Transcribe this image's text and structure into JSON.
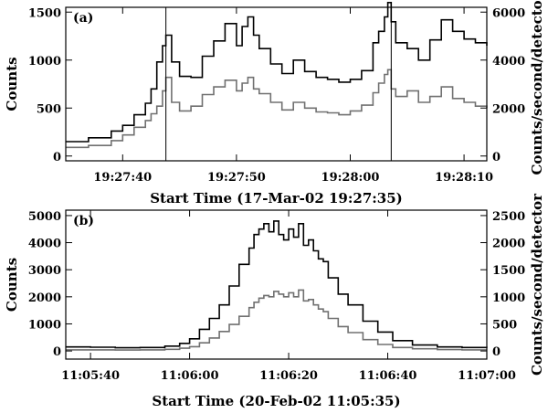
{
  "chart_data": [
    {
      "type": "line",
      "panel_label": "(a)",
      "xlabel": "Start Time (17-Mar-02 19:27:35)",
      "ylabel": "Counts",
      "ylabel_right": "Counts/second/detector",
      "xlim": [
        0,
        37
      ],
      "ylim": [
        -50,
        1550
      ],
      "ylim_right": [
        -200,
        6200
      ],
      "x_ticks": [
        {
          "value": 5,
          "label": "19:27:40"
        },
        {
          "value": 15,
          "label": "19:27:50"
        },
        {
          "value": 25,
          "label": "19:28:00"
        },
        {
          "value": 35,
          "label": "19:28:10"
        }
      ],
      "y_ticks": [
        0,
        500,
        1000,
        1500
      ],
      "y_ticks_right": [
        0,
        2000,
        4000,
        6000
      ],
      "vertical_markers": [
        8.8,
        28.6
      ],
      "series": [
        {
          "color": "#000000",
          "x": [
            0,
            2,
            4,
            5,
            6,
            7,
            7.5,
            8,
            8.5,
            8.8,
            9.3,
            10,
            11,
            12,
            13,
            14,
            15,
            15.5,
            16,
            16.5,
            17,
            18,
            19,
            20,
            21,
            22,
            23,
            24,
            25,
            26,
            27,
            27.5,
            28,
            28.3,
            28.6,
            29,
            30,
            31,
            32,
            33,
            34,
            35,
            36,
            37
          ],
          "values": [
            150,
            190,
            260,
            320,
            430,
            550,
            700,
            980,
            1150,
            1260,
            980,
            830,
            820,
            1040,
            1200,
            1380,
            1150,
            1350,
            1450,
            1260,
            1120,
            960,
            860,
            1000,
            880,
            820,
            800,
            770,
            800,
            890,
            1180,
            1300,
            1450,
            1600,
            1400,
            1180,
            1120,
            1000,
            1210,
            1420,
            1300,
            1220,
            1180,
            1150
          ]
        },
        {
          "color": "#707070",
          "x": [
            0,
            2,
            4,
            5,
            6,
            7,
            7.5,
            8,
            8.5,
            8.8,
            9.3,
            10,
            11,
            12,
            13,
            14,
            15,
            15.5,
            16,
            16.5,
            17,
            18,
            19,
            20,
            21,
            22,
            23,
            24,
            25,
            26,
            27,
            27.5,
            28,
            28.3,
            28.6,
            29,
            30,
            31,
            32,
            33,
            34,
            35,
            36,
            37
          ],
          "values": [
            90,
            110,
            160,
            220,
            300,
            370,
            440,
            520,
            680,
            820,
            560,
            470,
            520,
            640,
            720,
            790,
            680,
            760,
            820,
            700,
            650,
            560,
            480,
            560,
            500,
            460,
            450,
            430,
            470,
            530,
            660,
            760,
            850,
            900,
            700,
            620,
            680,
            560,
            620,
            720,
            600,
            560,
            520,
            500
          ]
        }
      ]
    },
    {
      "type": "line",
      "panel_label": "(b)",
      "xlabel": "Start Time (20-Feb-02 11:05:35)",
      "ylabel": "Counts",
      "ylabel_right": "Counts/second/detector",
      "xlim": [
        0,
        85
      ],
      "ylim": [
        -300,
        5200
      ],
      "ylim_right": [
        -150,
        2600
      ],
      "x_ticks": [
        {
          "value": 5,
          "label": "11:05:40"
        },
        {
          "value": 25,
          "label": "11:06:00"
        },
        {
          "value": 45,
          "label": "11:06:20"
        },
        {
          "value": 65,
          "label": "11:06:40"
        },
        {
          "value": 85,
          "label": "11:07:00"
        }
      ],
      "y_ticks": [
        0,
        1000,
        2000,
        3000,
        4000,
        5000
      ],
      "y_ticks_right": [
        0,
        500,
        1000,
        1500,
        2000,
        2500
      ],
      "series": [
        {
          "color": "#000000",
          "x": [
            0,
            5,
            10,
            15,
            20,
            23,
            25,
            27,
            29,
            31,
            33,
            35,
            37,
            38,
            39,
            40,
            41,
            42,
            43,
            44,
            45,
            46,
            47,
            48,
            49,
            50,
            51,
            52,
            53,
            55,
            57,
            60,
            63,
            66,
            70,
            75,
            80,
            85
          ],
          "values": [
            150,
            140,
            120,
            130,
            180,
            280,
            450,
            800,
            1200,
            1700,
            2400,
            3200,
            3800,
            4300,
            4500,
            4700,
            4400,
            4800,
            4300,
            4100,
            4500,
            4200,
            4700,
            3900,
            4100,
            3700,
            3400,
            3300,
            2700,
            2100,
            1700,
            1100,
            700,
            380,
            220,
            150,
            130,
            120
          ]
        },
        {
          "color": "#707070",
          "x": [
            0,
            5,
            10,
            15,
            20,
            23,
            25,
            27,
            29,
            31,
            33,
            35,
            37,
            38,
            39,
            40,
            41,
            42,
            43,
            44,
            45,
            46,
            47,
            48,
            49,
            50,
            51,
            52,
            53,
            55,
            57,
            60,
            63,
            66,
            70,
            75,
            80,
            85
          ],
          "values": [
            40,
            40,
            35,
            40,
            60,
            100,
            160,
            300,
            480,
            720,
            980,
            1280,
            1600,
            1800,
            1950,
            2050,
            2000,
            2200,
            2100,
            2000,
            2150,
            2000,
            2250,
            1850,
            1900,
            1700,
            1550,
            1450,
            1200,
            900,
            680,
            420,
            240,
            130,
            80,
            50,
            40,
            40
          ]
        }
      ]
    }
  ]
}
